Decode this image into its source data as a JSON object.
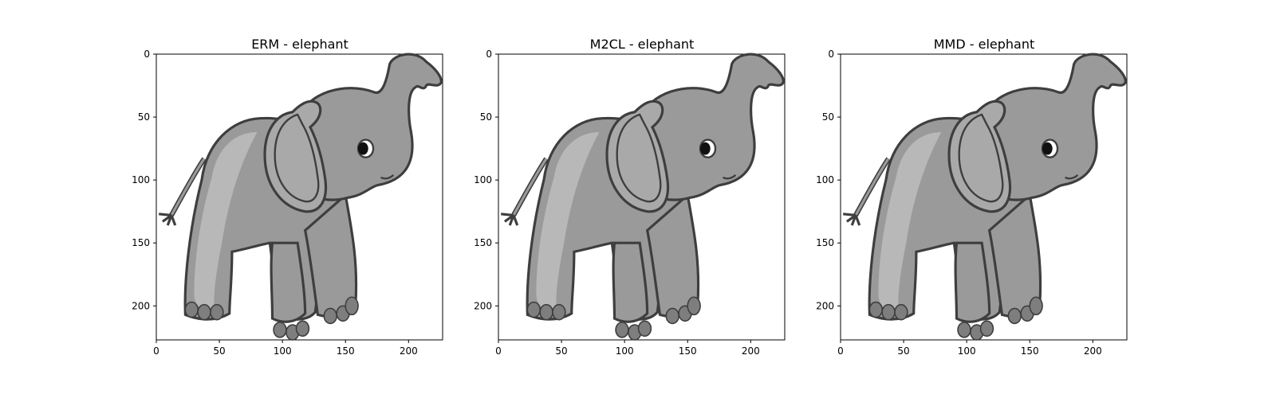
{
  "figure": {
    "panels": [
      {
        "title": "ERM - elephant",
        "image_subject": "elephant"
      },
      {
        "title": "M2CL - elephant",
        "image_subject": "elephant"
      },
      {
        "title": "MMD - elephant",
        "image_subject": "elephant"
      }
    ],
    "x_ticks": [
      "0",
      "50",
      "100",
      "150",
      "200"
    ],
    "y_ticks": [
      "0",
      "50",
      "100",
      "150",
      "200"
    ],
    "x_range": [
      0,
      227
    ],
    "y_range": [
      0,
      227
    ],
    "colors": {
      "body": "#9a9a9a",
      "body_light": "#b8b8b8",
      "ear": "#a9a9a9",
      "toes": "#7e7e7e",
      "outline": "#3e3e3e"
    }
  }
}
